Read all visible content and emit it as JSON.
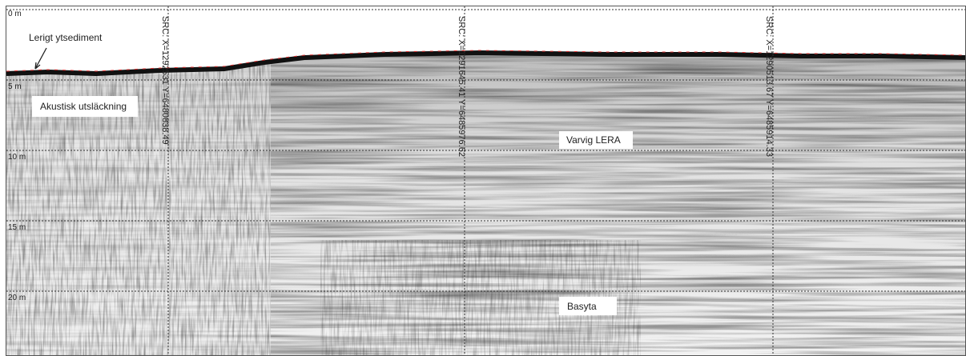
{
  "depth_labels": [
    "0 m",
    "5 m",
    "10 m",
    "15 m",
    "20 m"
  ],
  "source_labels": [
    "SRC: X=1292531 Y=6480838.49",
    "SRC: X=1291645.41 Y=6485976.62",
    "SRC: X=1290513.67 Y=6485914.33"
  ],
  "annotations": {
    "surface": "Lerigt ytsediment",
    "blanking": "Akustisk utsläckning",
    "clay": "Varvig LERA",
    "bedrock": "Basyta"
  }
}
